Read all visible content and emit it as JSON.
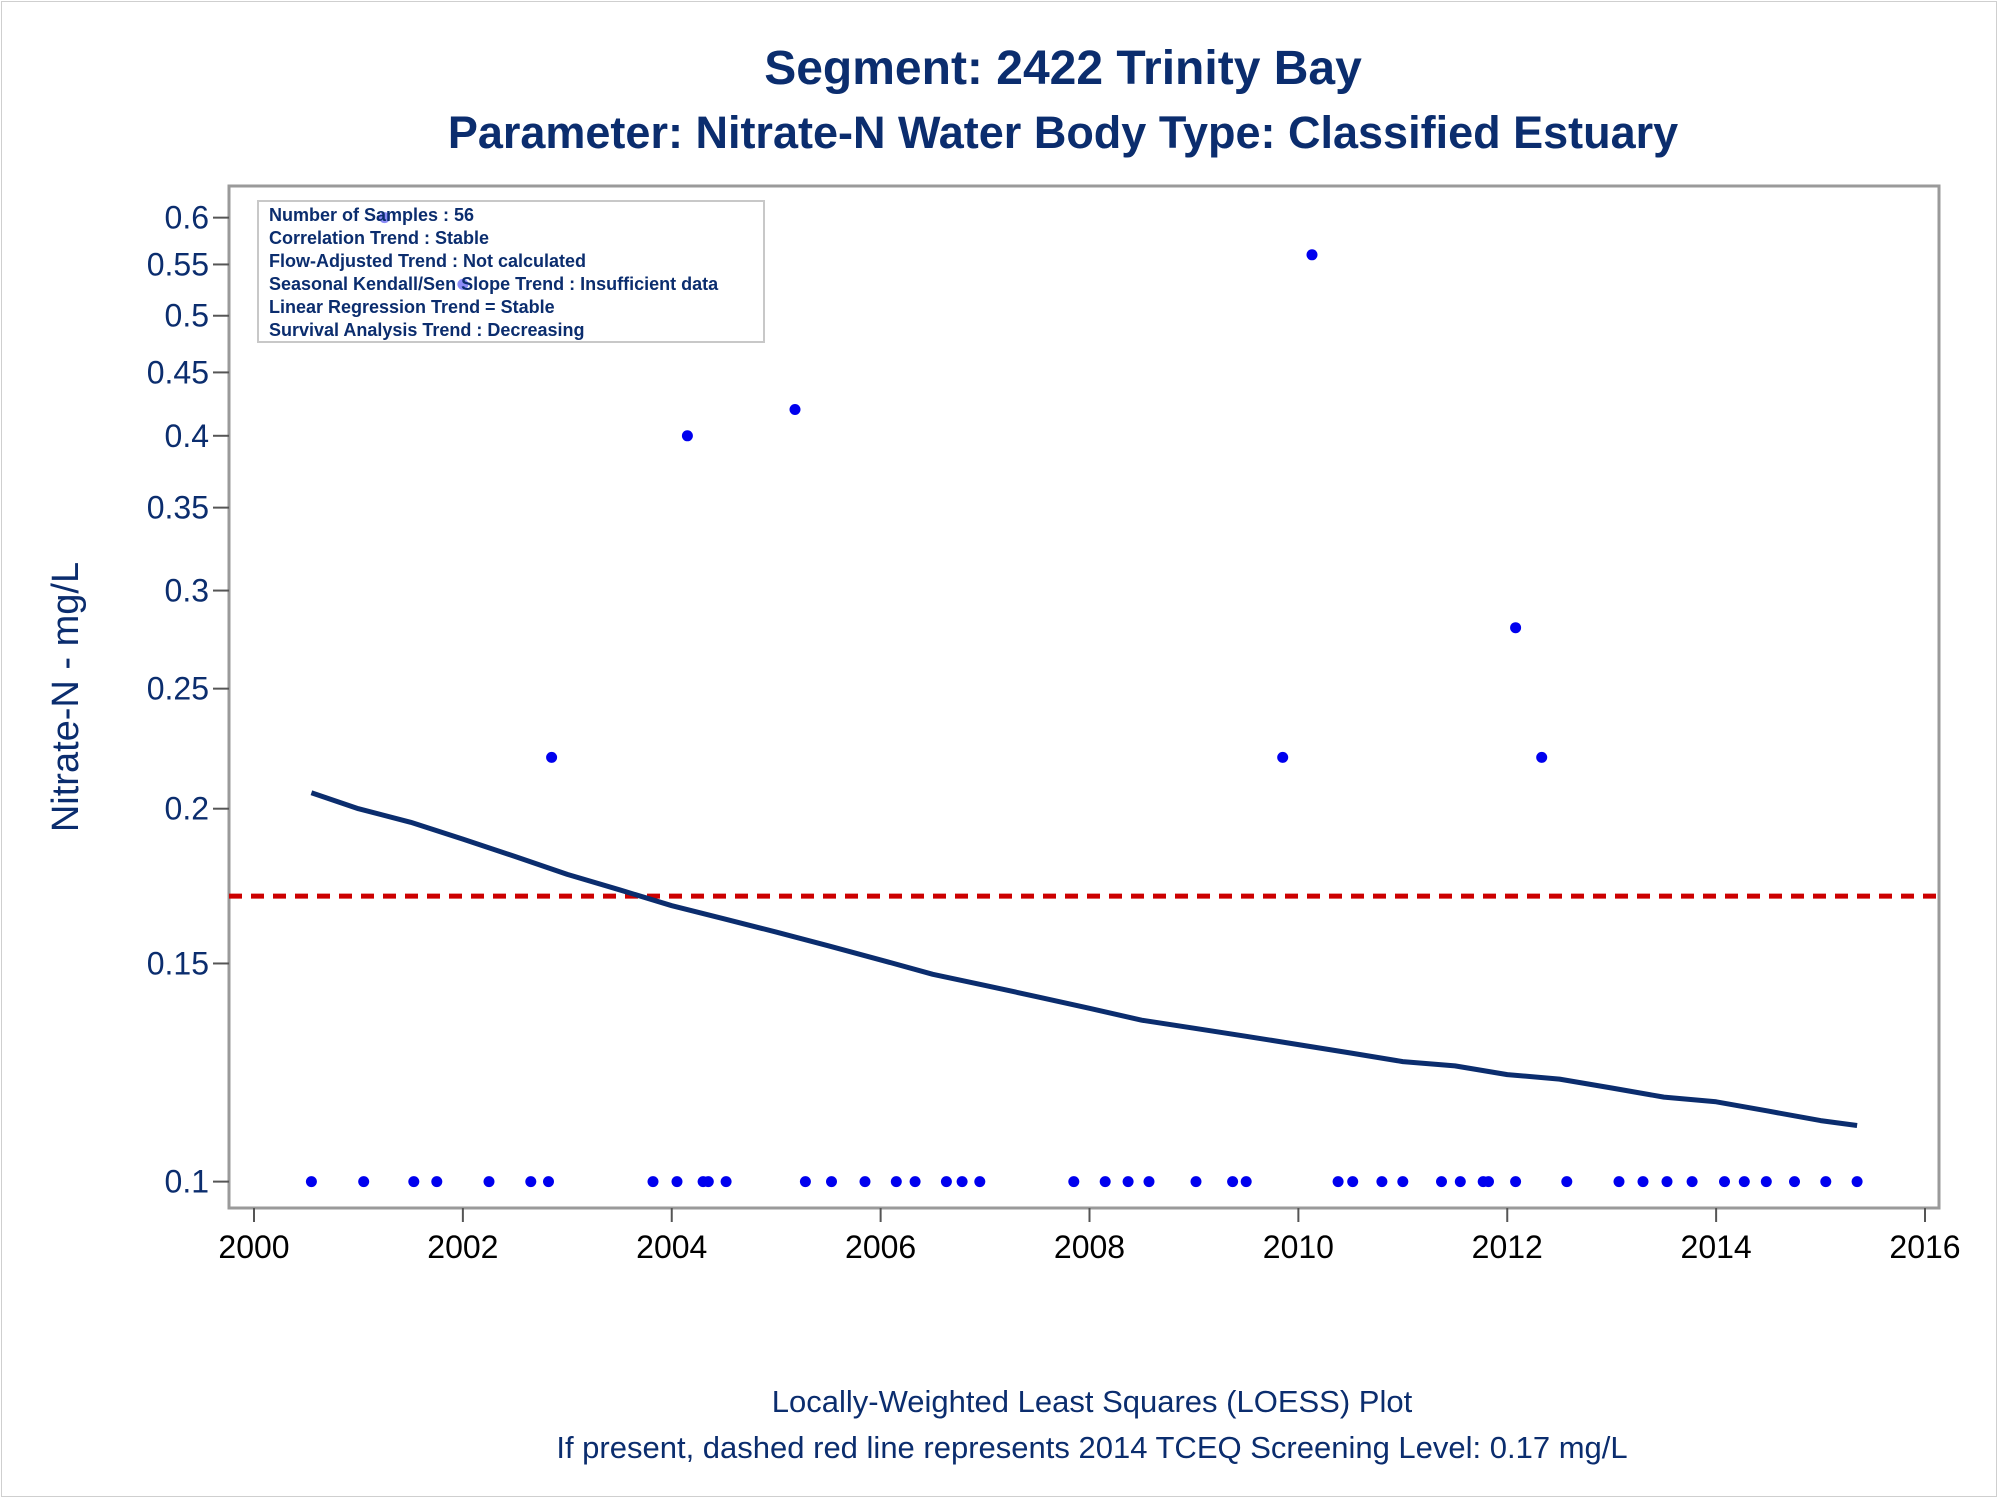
{
  "chart_data": {
    "type": "scatter",
    "title": "Segment: 2422  Trinity Bay",
    "subtitle": "Parameter: Nitrate-N   Water Body Type: Classified Estuary",
    "ylabel": "Nitrate-N - mg/L",
    "xlabel": "",
    "y_scale": "log",
    "xlim": [
      2000,
      2016
    ],
    "ylim": [
      0.097,
      0.62
    ],
    "x_ticks": [
      2000,
      2002,
      2004,
      2006,
      2008,
      2010,
      2012,
      2014,
      2016
    ],
    "y_ticks": [
      0.1,
      0.15,
      0.2,
      0.25,
      0.3,
      0.35,
      0.4,
      0.45,
      0.5,
      0.55,
      0.6
    ],
    "x_tick_labels": [
      "2000",
      "2002",
      "2004",
      "2006",
      "2008",
      "2010",
      "2012",
      "2014",
      "2016"
    ],
    "y_tick_labels": [
      "0.1",
      "0.15",
      "0.2",
      "0.25",
      "0.3",
      "0.35",
      "0.4",
      "0.45",
      "0.5",
      "0.55",
      "0.6"
    ],
    "grid": false,
    "legend": "none",
    "stats_box": {
      "placement": "top-left",
      "lines": [
        "Number of Samples : 56",
        "Correlation Trend : Stable",
        "Flow-Adjusted Trend : Not calculated",
        "Seasonal Kendall/Sen Slope Trend : Insufficient data",
        "Linear Regression Trend = Stable",
        "Survival Analysis Trend : Decreasing"
      ]
    },
    "screening_level": {
      "value": 0.17,
      "color": "#cc0000",
      "style": "dashed"
    },
    "points": {
      "color": "#0000ee",
      "x": [
        2000.55,
        2001.05,
        2001.53,
        2001.75,
        2002.25,
        2002.65,
        2002.82,
        2003.82,
        2004.05,
        2004.3,
        2004.35,
        2004.52,
        2005.28,
        2005.53,
        2005.85,
        2006.15,
        2006.33,
        2006.63,
        2006.78,
        2006.95,
        2007.85,
        2008.15,
        2008.37,
        2008.57,
        2009.02,
        2009.37,
        2009.5,
        2010.38,
        2010.52,
        2010.8,
        2011.0,
        2011.37,
        2011.55,
        2011.77,
        2011.82,
        2012.08,
        2012.57,
        2013.07,
        2013.3,
        2013.53,
        2013.77,
        2014.08,
        2014.27,
        2014.48,
        2014.75,
        2015.05,
        2015.35,
        2001.25,
        2002.0,
        2002.85,
        2004.15,
        2005.18,
        2009.85,
        2010.13,
        2012.08,
        2012.33
      ],
      "y": [
        0.1,
        0.1,
        0.1,
        0.1,
        0.1,
        0.1,
        0.1,
        0.1,
        0.1,
        0.1,
        0.1,
        0.1,
        0.1,
        0.1,
        0.1,
        0.1,
        0.1,
        0.1,
        0.1,
        0.1,
        0.1,
        0.1,
        0.1,
        0.1,
        0.1,
        0.1,
        0.1,
        0.1,
        0.1,
        0.1,
        0.1,
        0.1,
        0.1,
        0.1,
        0.1,
        0.1,
        0.1,
        0.1,
        0.1,
        0.1,
        0.1,
        0.1,
        0.1,
        0.1,
        0.1,
        0.1,
        0.1,
        0.6,
        0.53,
        0.22,
        0.4,
        0.42,
        0.22,
        0.56,
        0.28,
        0.22
      ]
    },
    "loess": {
      "color": "#0b2d6e",
      "x": [
        2000.55,
        2001.0,
        2001.5,
        2002.0,
        2002.5,
        2003.0,
        2003.5,
        2004.0,
        2004.5,
        2005.0,
        2005.5,
        2006.0,
        2006.5,
        2007.0,
        2007.5,
        2008.0,
        2008.5,
        2009.0,
        2009.5,
        2010.0,
        2010.5,
        2011.0,
        2011.5,
        2012.0,
        2012.5,
        2013.0,
        2013.5,
        2014.0,
        2014.5,
        2015.0,
        2015.35
      ],
      "y": [
        0.206,
        0.2,
        0.195,
        0.189,
        0.183,
        0.177,
        0.172,
        0.167,
        0.163,
        0.159,
        0.155,
        0.151,
        0.147,
        0.144,
        0.141,
        0.138,
        0.135,
        0.133,
        0.131,
        0.129,
        0.127,
        0.125,
        0.124,
        0.122,
        0.121,
        0.119,
        0.117,
        0.116,
        0.114,
        0.112,
        0.111
      ]
    },
    "footnotes": [
      "Locally-Weighted Least Squares (LOESS) Plot",
      "If present, dashed red line represents 2014 TCEQ Screening Level: 0.17 mg/L"
    ]
  }
}
